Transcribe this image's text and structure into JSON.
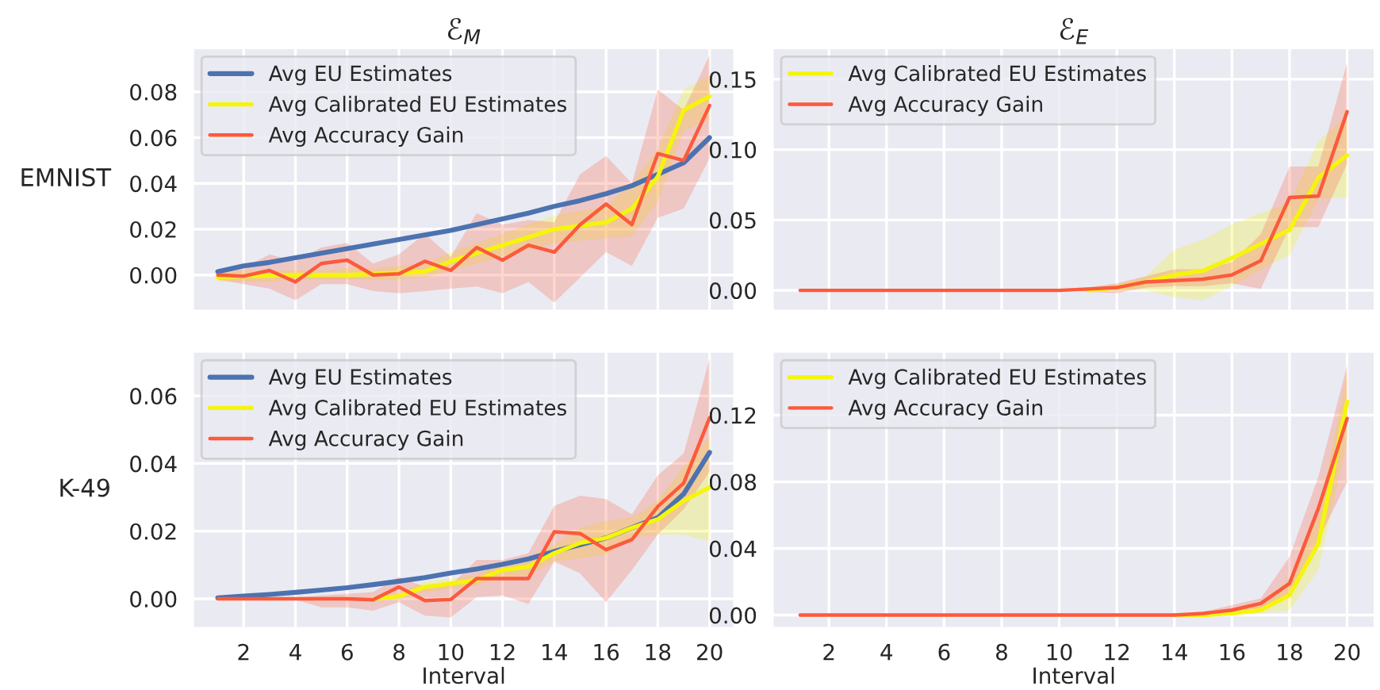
{
  "chart_data": [
    {
      "type": "line",
      "title": "ℰ$_{M}$",
      "ylabel": "EMNIST",
      "x": [
        1,
        2,
        3,
        4,
        5,
        6,
        7,
        8,
        9,
        10,
        11,
        12,
        13,
        14,
        15,
        16,
        17,
        18,
        19,
        20
      ],
      "xlim": [
        0.05,
        20.95
      ],
      "xticks": [
        2,
        4,
        6,
        8,
        10,
        12,
        14,
        16,
        18,
        20
      ],
      "ylim": [
        -0.0155,
        0.099
      ],
      "yticks": [
        {
          "value": 0,
          "label": "0.00"
        },
        {
          "value": 0.02,
          "label": "0.02"
        },
        {
          "value": 0.04,
          "label": "0.04"
        },
        {
          "value": 0.06,
          "label": "0.06"
        },
        {
          "value": 0.08,
          "label": "0.08"
        }
      ],
      "tick_labels": "y",
      "grid": true,
      "legend": "top left",
      "line_style": "solid",
      "series": [
        {
          "name": "Avg EU Estimates",
          "color": "#4c72b0",
          "values": [
            0.0015,
            0.004,
            0.0055,
            0.0075,
            0.0095,
            0.0115,
            0.0135,
            0.0155,
            0.0175,
            0.0195,
            0.022,
            0.0245,
            0.027,
            0.03,
            0.0325,
            0.0355,
            0.039,
            0.044,
            0.049,
            0.06
          ]
        },
        {
          "name": "Avg Calibrated EU Estimates",
          "color": "#f5f50c",
          "values": [
            -0.001,
            -0.0005,
            -0.0003,
            0,
            0,
            0,
            0.0005,
            0.001,
            0.0015,
            0.006,
            0.0095,
            0.013,
            0.0165,
            0.02,
            0.0215,
            0.023,
            0.029,
            0.043,
            0.072,
            0.078
          ],
          "lower": [
            -0.003,
            -0.003,
            -0.003,
            -0.002,
            -0.002,
            -0.002,
            -0.002,
            -0.002,
            -0.001,
            0.002,
            0.005,
            0.008,
            0.011,
            0.014,
            0.015,
            0.016,
            0.017,
            0.032,
            0.063,
            0.068
          ],
          "upper": [
            0.001,
            0.002,
            0.002,
            0.002,
            0.002,
            0.003,
            0.003,
            0.004,
            0.005,
            0.01,
            0.014,
            0.018,
            0.022,
            0.026,
            0.028,
            0.03,
            0.04,
            0.055,
            0.081,
            0.087
          ]
        },
        {
          "name": "Avg Accuracy Gain",
          "color": "#fc5a3b",
          "values": [
            0,
            -0.0005,
            0.002,
            -0.003,
            0.005,
            0.0065,
            0,
            0.0005,
            0.006,
            0.002,
            0.012,
            0.0065,
            0.013,
            0.01,
            0.022,
            0.031,
            0.022,
            0.053,
            0.05,
            0.074
          ],
          "lower": [
            -0.002,
            -0.004,
            -0.006,
            -0.011,
            -0.004,
            -0.004,
            -0.007,
            -0.008,
            -0.007,
            -0.006,
            -0.005,
            -0.008,
            -0.003,
            -0.012,
            -0.001,
            0.01,
            0.004,
            0.025,
            0.029,
            0.051
          ],
          "upper": [
            0.002,
            0.003,
            0.009,
            0.006,
            0.012,
            0.014,
            0.005,
            0.009,
            0.018,
            0.008,
            0.027,
            0.022,
            0.024,
            0.023,
            0.044,
            0.052,
            0.04,
            0.081,
            0.072,
            0.096
          ]
        }
      ]
    },
    {
      "type": "line",
      "title": "ℰ$_{E}$",
      "x": [
        1,
        2,
        3,
        4,
        5,
        6,
        7,
        8,
        9,
        10,
        11,
        12,
        13,
        14,
        15,
        16,
        17,
        18,
        19,
        20
      ],
      "xlim": [
        0.05,
        20.95
      ],
      "xticks": [
        2,
        4,
        6,
        8,
        10,
        12,
        14,
        16,
        18,
        20
      ],
      "ylim": [
        -0.0143,
        0.172
      ],
      "yticks": [
        {
          "value": 0,
          "label": "0.00"
        },
        {
          "value": 0.05,
          "label": "0.05"
        },
        {
          "value": 0.1,
          "label": "0.10"
        },
        {
          "value": 0.15,
          "label": "0.15"
        }
      ],
      "tick_labels": "y",
      "grid": true,
      "legend": "top left",
      "line_style": "solid",
      "series": [
        {
          "name": "Avg Calibrated EU Estimates",
          "color": "#f5f50c",
          "values": [
            null,
            null,
            null,
            null,
            null,
            null,
            null,
            null,
            null,
            null,
            0,
            0.002,
            0.006,
            0.011,
            0.014,
            0.023,
            0.033,
            0.043,
            0.08,
            0.096
          ],
          "lower": [
            0,
            0,
            0,
            0,
            0,
            0,
            0,
            0,
            0,
            0,
            0,
            0,
            0,
            -0.005,
            -0.007,
            0.003,
            0.015,
            0.025,
            0.065,
            0.066
          ],
          "upper": [
            0,
            0,
            0,
            0,
            0,
            0,
            0,
            0,
            0,
            0,
            0.001,
            0.004,
            0.01,
            0.029,
            0.036,
            0.047,
            0.055,
            0.062,
            0.106,
            0.124
          ]
        },
        {
          "name": "Avg Accuracy Gain",
          "color": "#fc5a3b",
          "values": [
            0,
            0,
            0,
            0,
            0,
            0,
            0,
            0,
            0,
            0,
            0.001,
            0.002,
            0.006,
            0.007,
            0.008,
            0.011,
            0.021,
            0.066,
            0.067,
            0.127
          ],
          "lower": [
            0,
            0,
            0,
            0,
            0,
            0,
            0,
            0,
            0,
            0,
            -0.001,
            -0.002,
            0.002,
            0.003,
            0.003,
            0.005,
            0.001,
            0.045,
            0.045,
            0.09
          ],
          "upper": [
            0,
            0,
            0,
            0,
            0,
            0,
            0,
            0,
            0,
            0,
            0.002,
            0.005,
            0.01,
            0.015,
            0.015,
            0.02,
            0.04,
            0.088,
            0.088,
            0.162
          ]
        }
      ]
    },
    {
      "type": "line",
      "ylabel": "K-49",
      "xlabel": "Interval",
      "x": [
        1,
        2,
        3,
        4,
        5,
        6,
        7,
        8,
        9,
        10,
        11,
        12,
        13,
        14,
        15,
        16,
        17,
        18,
        19,
        20
      ],
      "xlim": [
        0.05,
        20.95
      ],
      "xticks": [
        2,
        4,
        6,
        8,
        10,
        12,
        14,
        16,
        18,
        20
      ],
      "ylim": [
        -0.0086,
        0.073
      ],
      "yticks": [
        {
          "value": 0,
          "label": "0.00"
        },
        {
          "value": 0.02,
          "label": "0.02"
        },
        {
          "value": 0.04,
          "label": "0.04"
        },
        {
          "value": 0.06,
          "label": "0.06"
        }
      ],
      "grid": true,
      "legend": "top left",
      "line_style": "solid",
      "series": [
        {
          "name": "Avg EU Estimates",
          "color": "#4c72b0",
          "values": [
            0.0003,
            0.0008,
            0.0013,
            0.0019,
            0.0026,
            0.0033,
            0.0042,
            0.0052,
            0.0063,
            0.0076,
            0.0088,
            0.0102,
            0.0118,
            0.014,
            0.016,
            0.018,
            0.021,
            0.024,
            0.031,
            0.0433
          ]
        },
        {
          "name": "Avg Calibrated EU Estimates",
          "color": "#f5f50c",
          "values": [
            null,
            null,
            null,
            null,
            null,
            null,
            0,
            0.0008,
            0.0035,
            0.0045,
            0.0055,
            0.0085,
            0.0095,
            0.0135,
            0.0165,
            0.018,
            0.021,
            0.0235,
            0.029,
            0.033
          ],
          "lower": [
            0,
            0,
            0,
            0,
            0,
            0,
            -0.0005,
            0,
            0.002,
            0.003,
            0.004,
            0.006,
            0.007,
            0.011,
            0.012,
            0.013,
            0.018,
            0.019,
            0.019,
            0.017
          ],
          "upper": [
            0,
            0,
            0,
            0,
            0.0003,
            0.0006,
            0.0005,
            0.0015,
            0.005,
            0.006,
            0.007,
            0.011,
            0.012,
            0.016,
            0.021,
            0.023,
            0.024,
            0.029,
            0.039,
            0.048
          ]
        },
        {
          "name": "Avg Accuracy Gain",
          "color": "#fc5a3b",
          "values": [
            0,
            0,
            0,
            0,
            0,
            0,
            -0.0003,
            0.0035,
            -0.0005,
            -0.0002,
            0.006,
            0.006,
            0.006,
            0.0198,
            0.0193,
            0.0145,
            0.0175,
            0.0273,
            0.0342,
            0.0535
          ],
          "lower": [
            0,
            0,
            0,
            -0.0003,
            -0.0025,
            -0.0025,
            -0.0035,
            -0.001,
            -0.005,
            -0.0055,
            0.0005,
            0.001,
            -0.0015,
            0.011,
            0.0075,
            -0.001,
            0.0085,
            0.019,
            0.0265,
            0.0375
          ],
          "upper": [
            0,
            0,
            0,
            0.0003,
            0.001,
            0.0015,
            0.002,
            0.0065,
            0.0035,
            0.004,
            0.0115,
            0.0115,
            0.0135,
            0.0275,
            0.0305,
            0.0295,
            0.025,
            0.0365,
            0.043,
            0.071
          ]
        }
      ]
    },
    {
      "type": "line",
      "xlabel": "Interval",
      "x": [
        1,
        2,
        3,
        4,
        5,
        6,
        7,
        8,
        9,
        10,
        11,
        12,
        13,
        14,
        15,
        16,
        17,
        18,
        19,
        20
      ],
      "xlim": [
        0.05,
        20.95
      ],
      "xticks": [
        2,
        4,
        6,
        8,
        10,
        12,
        14,
        16,
        18,
        20
      ],
      "ylim": [
        -0.0077,
        0.158
      ],
      "yticks": [
        {
          "value": 0,
          "label": "0.00"
        },
        {
          "value": 0.04,
          "label": "0.04"
        },
        {
          "value": 0.08,
          "label": "0.08"
        },
        {
          "value": 0.12,
          "label": "0.12"
        }
      ],
      "grid": true,
      "legend": "top left",
      "line_style": "solid",
      "series": [
        {
          "name": "Avg Calibrated EU Estimates",
          "color": "#f5f50c",
          "values": [
            null,
            null,
            null,
            null,
            null,
            null,
            null,
            null,
            null,
            null,
            null,
            null,
            null,
            0,
            0,
            0.001,
            0.003,
            0.012,
            0.043,
            0.128
          ],
          "lower": [
            0,
            0,
            0,
            0,
            0,
            0,
            0,
            0,
            0,
            0,
            0,
            0,
            0,
            0,
            -0.0005,
            0,
            0.001,
            0.003,
            0.027,
            0.105
          ],
          "upper": [
            0,
            0,
            0,
            0,
            0,
            0,
            0,
            0,
            0,
            0,
            0,
            0,
            0,
            0,
            0.0005,
            0.002,
            0.006,
            0.022,
            0.06,
            0.145
          ]
        },
        {
          "name": "Avg Accuracy Gain",
          "color": "#fc5a3b",
          "values": [
            0,
            0,
            0,
            0,
            0,
            0,
            0,
            0,
            0,
            0,
            0,
            0,
            0,
            0,
            0.001,
            0.003,
            0.007,
            0.019,
            0.064,
            0.118
          ],
          "lower": [
            0,
            0,
            0,
            0,
            0,
            0,
            0,
            0,
            0,
            0,
            0,
            0,
            0,
            0,
            0,
            0.001,
            0.004,
            0.012,
            0.045,
            0.08
          ],
          "upper": [
            0,
            0,
            0,
            0,
            0,
            0,
            0,
            0,
            0,
            0,
            0,
            0,
            0,
            0,
            0.002,
            0.006,
            0.01,
            0.035,
            0.083,
            0.15
          ]
        }
      ]
    }
  ]
}
